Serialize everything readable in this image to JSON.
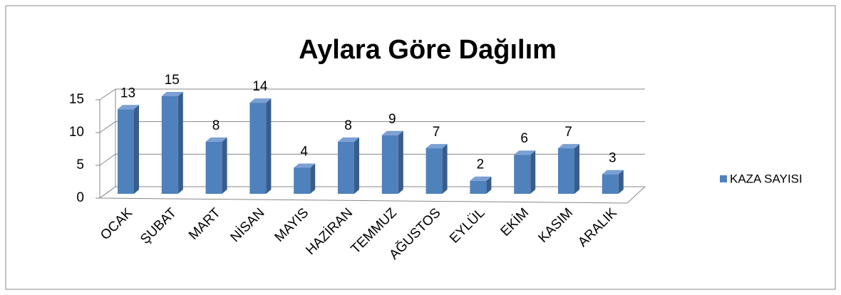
{
  "chart_data": {
    "type": "bar3d",
    "title": "Aylara Göre Dağılım",
    "categories": [
      "OCAK",
      "ŞUBAT",
      "MART",
      "NİSAN",
      "MAYIS",
      "HAZİRAN",
      "TEMMUZ",
      "AĞUSTOS",
      "EYLÜL",
      "EKİM",
      "KASIM",
      "ARALIK"
    ],
    "series": [
      {
        "name": "KAZA SAYISI",
        "color": "#4f81bd",
        "values": [
          13,
          15,
          8,
          14,
          4,
          8,
          9,
          7,
          2,
          6,
          7,
          3
        ]
      }
    ],
    "ylim": [
      0,
      15
    ],
    "yticks": [
      0,
      5,
      10,
      15
    ],
    "grid": true,
    "legend": "right"
  }
}
